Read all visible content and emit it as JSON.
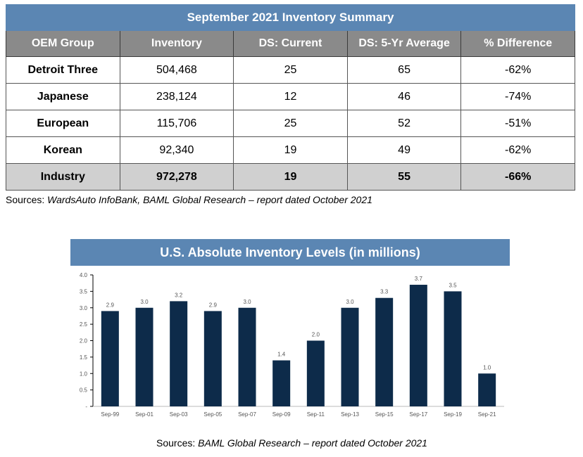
{
  "table": {
    "title": "September 2021 Inventory Summary",
    "headers": [
      "OEM Group",
      "Inventory",
      "DS: Current",
      "DS: 5-Yr Average",
      "% Difference"
    ],
    "rows": [
      [
        "Detroit Three",
        "504,468",
        "25",
        "65",
        "-62%"
      ],
      [
        "Japanese",
        "238,124",
        "12",
        "46",
        "-74%"
      ],
      [
        "European",
        "115,706",
        "25",
        "52",
        "-51%"
      ],
      [
        "Korean",
        "92,340",
        "19",
        "49",
        "-62%"
      ]
    ],
    "total_row": [
      "Industry",
      "972,278",
      "19",
      "55",
      "-66%"
    ],
    "source_prefix": "Sources: ",
    "source_italic": "WardsAuto InfoBank, BAML Global Research – report dated October 2021"
  },
  "chart_source": {
    "prefix": "Sources: ",
    "italic": "BAML Global Research – report dated October 2021"
  },
  "colors": {
    "title_band": "#5b86b3",
    "header_fill": "#8a8a8a",
    "total_fill": "#d0d0d0",
    "bar_fill": "#0d2b4a"
  },
  "chart_data": {
    "type": "bar",
    "title": "U.S. Absolute Inventory Levels (in millions)",
    "categories": [
      "Sep-99",
      "Sep-01",
      "Sep-03",
      "Sep-05",
      "Sep-07",
      "Sep-09",
      "Sep-11",
      "Sep-13",
      "Sep-15",
      "Sep-17",
      "Sep-19",
      "Sep-21"
    ],
    "values": [
      2.9,
      3.0,
      3.2,
      2.9,
      3.0,
      1.4,
      2.0,
      3.0,
      3.3,
      3.7,
      3.5,
      1.0
    ],
    "value_labels": [
      "2.9",
      "3.0",
      "3.2",
      "2.9",
      "3.0",
      "1.4",
      "2.0",
      "3.0",
      "3.3",
      "3.7",
      "3.5",
      "1.0"
    ],
    "y_ticks": [
      0,
      0.5,
      1.0,
      1.5,
      2.0,
      2.5,
      3.0,
      3.5,
      4.0
    ],
    "y_tick_labels": [
      "-",
      "0.5",
      "1.0",
      "1.5",
      "2.0",
      "2.5",
      "3.0",
      "3.5",
      "4.0"
    ],
    "ylim": [
      0,
      4.0
    ],
    "grid": false,
    "xlabel": "",
    "ylabel": ""
  }
}
